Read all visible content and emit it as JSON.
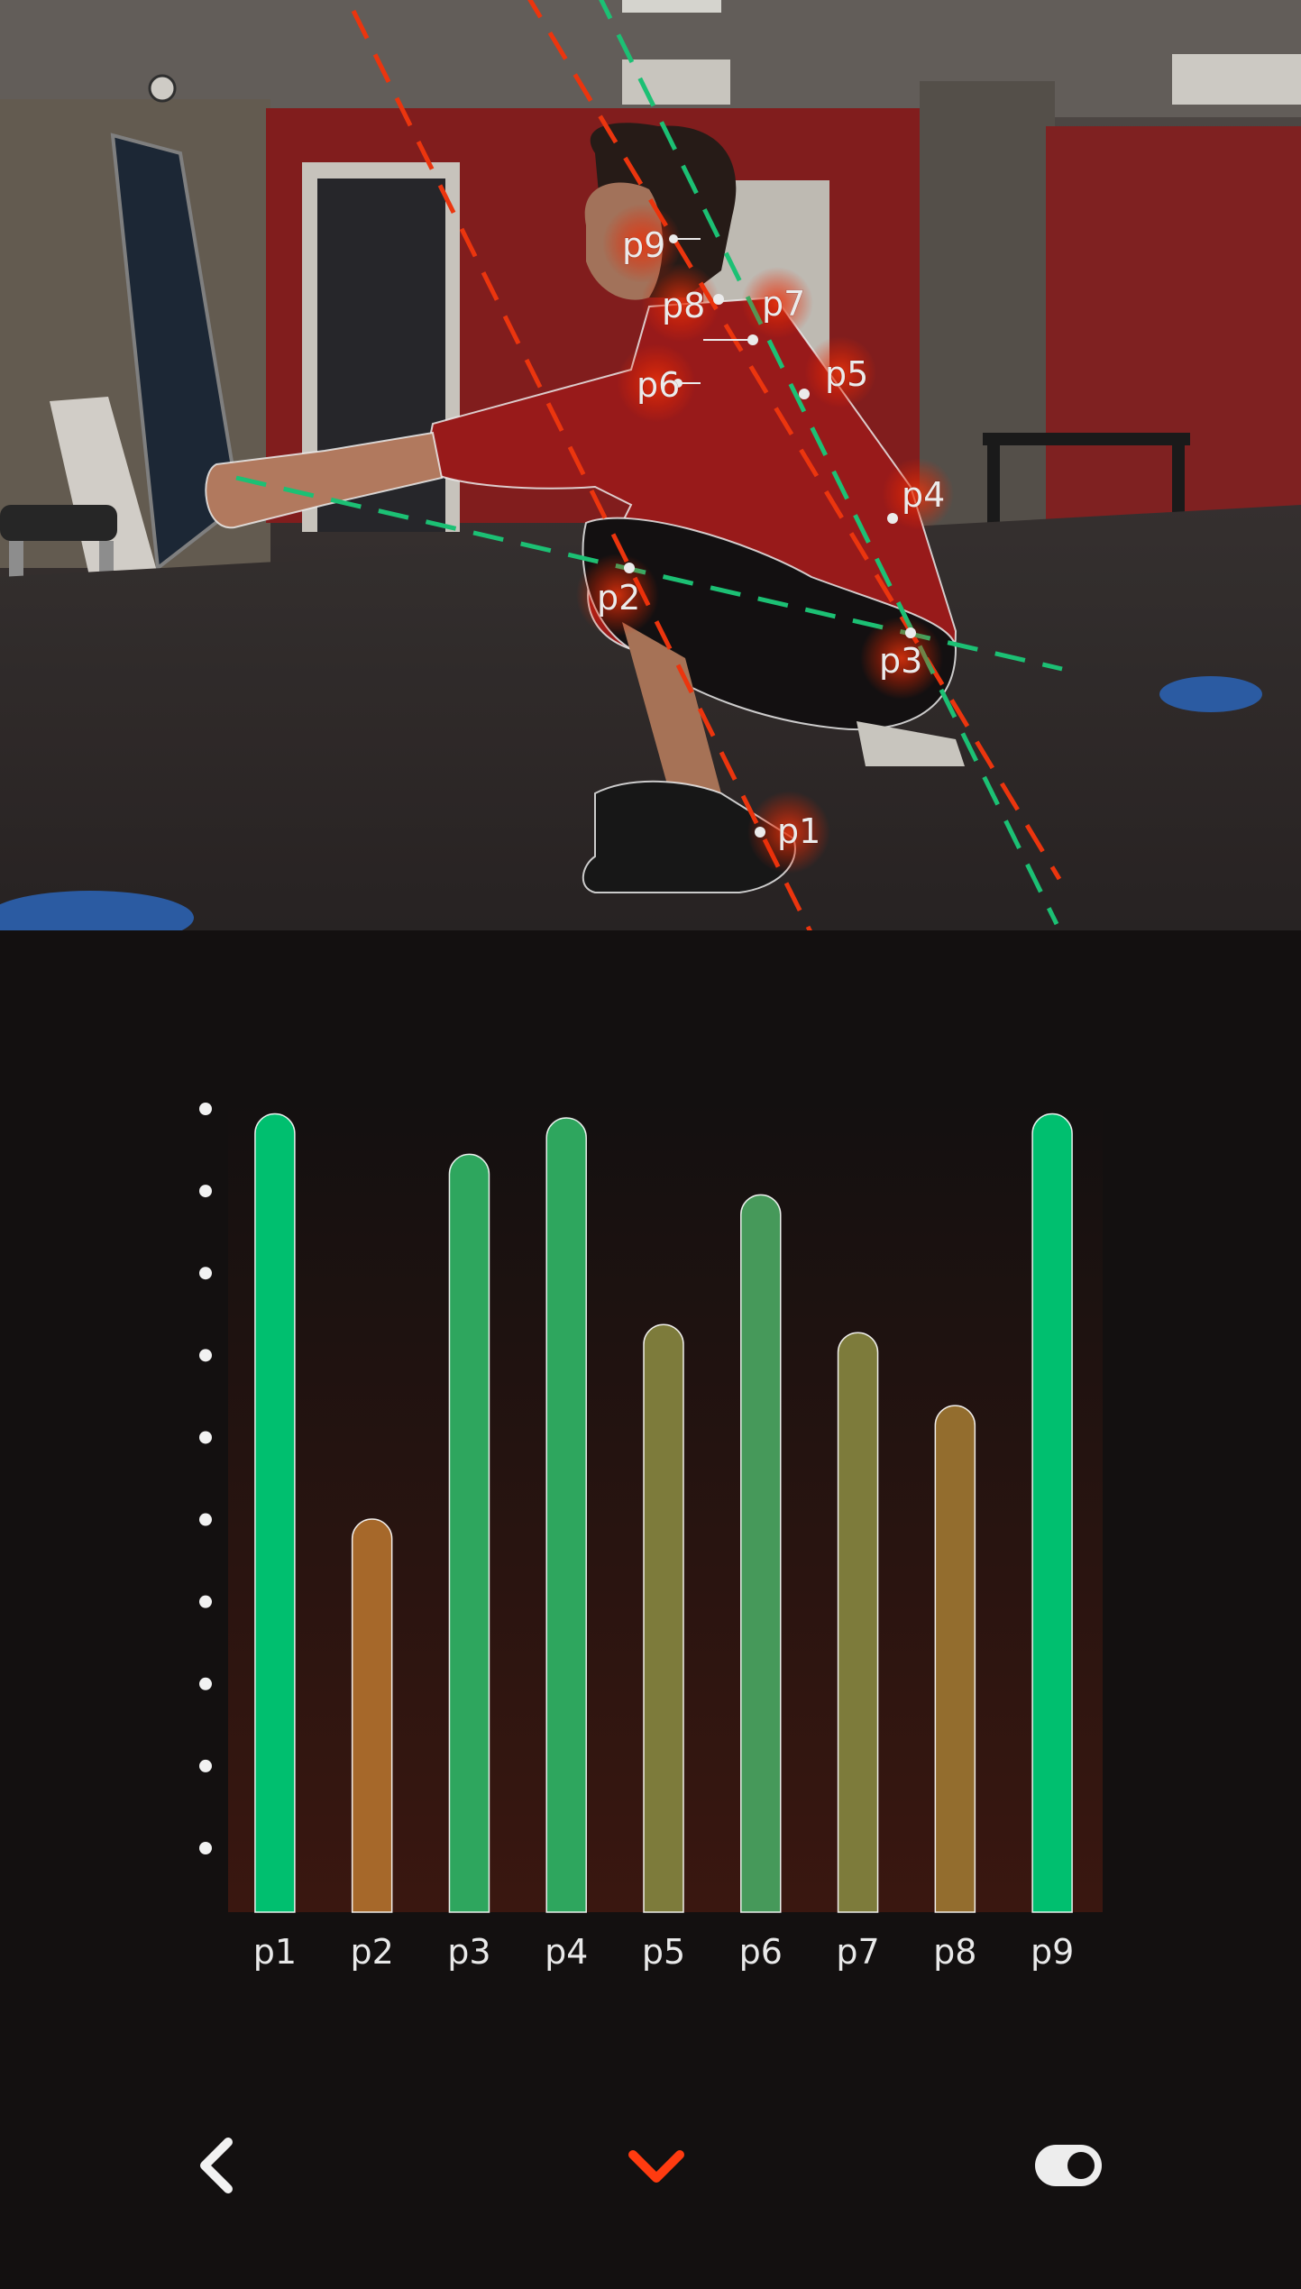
{
  "photo": {
    "points": [
      {
        "label": "p1"
      },
      {
        "label": "p2"
      },
      {
        "label": "p3"
      },
      {
        "label": "p4"
      },
      {
        "label": "p5"
      },
      {
        "label": "p6"
      },
      {
        "label": "p7"
      },
      {
        "label": "p8"
      },
      {
        "label": "p9"
      }
    ]
  },
  "chart_data": {
    "type": "bar",
    "categories": [
      "p1",
      "p2",
      "p3",
      "p4",
      "p5",
      "p6",
      "p7",
      "p8",
      "p9"
    ],
    "values": [
      98.5,
      48.5,
      93.5,
      98,
      72.5,
      88.5,
      71.5,
      62.5,
      98.5
    ],
    "ylim": [
      0,
      100
    ],
    "y_ticks": 10,
    "grid": false,
    "bar_colors": [
      "#00bf6f",
      "#a6682a",
      "#2ea65e",
      "#2ea65e",
      "#7d7b3b",
      "#46995a",
      "#7d7b3b",
      "#936d2e",
      "#00bf6f"
    ],
    "background_gradient": [
      "#131010",
      "#3a1710"
    ]
  },
  "bottom_nav": {
    "back_icon": "chevron-left-icon",
    "expand_icon": "chevron-down-icon",
    "toggle_icon": "toggle-switch-icon",
    "accent_color": "#ff3b10",
    "toggle_on": true
  }
}
